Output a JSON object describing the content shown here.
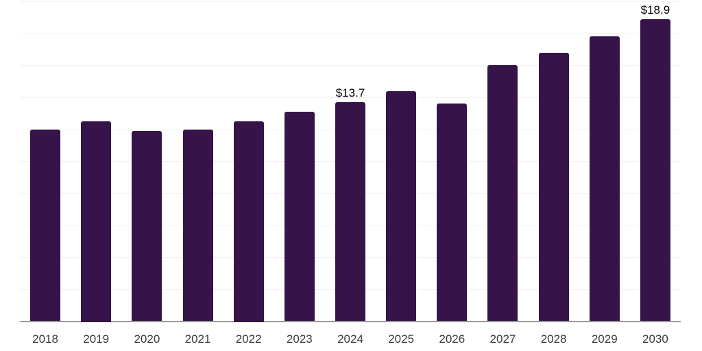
{
  "chart_data": {
    "type": "bar",
    "title": "",
    "xlabel": "",
    "ylabel": "",
    "categories": [
      "2018",
      "2019",
      "2020",
      "2021",
      "2022",
      "2023",
      "2024",
      "2025",
      "2026",
      "2027",
      "2028",
      "2029",
      "2030"
    ],
    "values": [
      12.0,
      12.5,
      11.9,
      12.0,
      12.5,
      13.1,
      13.7,
      14.4,
      13.6,
      16.0,
      16.8,
      17.8,
      18.9
    ],
    "data_labels": [
      "",
      "",
      "",
      "",
      "",
      "",
      "$13.7",
      "",
      "",
      "",
      "",
      "",
      "$18.9"
    ],
    "ylim": [
      0,
      20
    ],
    "gridline_step": 2,
    "grid": "horizontal",
    "legend": "none",
    "colors": {
      "bar": "#361449",
      "gridline": "#f2f0f3",
      "axis_line": "#212121",
      "tick_label": "#3a3a3a",
      "data_label": "#000000",
      "background": "#ffffff"
    }
  }
}
